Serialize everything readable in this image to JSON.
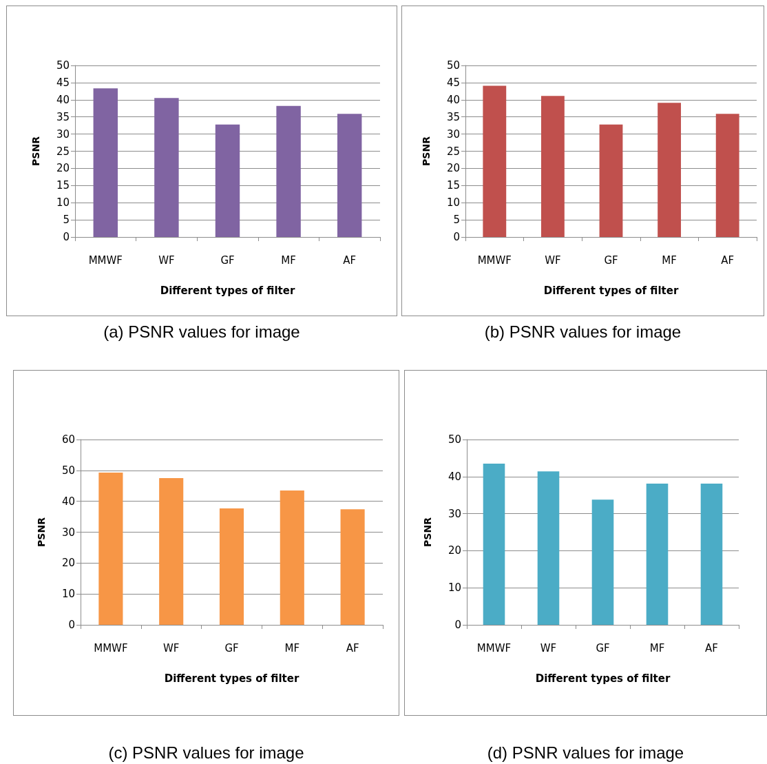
{
  "chart_data": [
    {
      "type": "bar",
      "title": "(a) PSNR values for image",
      "xlabel": "Different types of filter",
      "ylabel": "PSNR",
      "categories": [
        "MMWF",
        "WF",
        "GF",
        "MF",
        "AF"
      ],
      "series": [
        {
          "color": "#8064a2",
          "values": [
            43.3,
            40.5,
            32.8,
            38.2,
            35.9
          ]
        }
      ],
      "ylim": [
        0,
        50
      ],
      "yticks": [
        0,
        5,
        10,
        15,
        20,
        25,
        30,
        35,
        40,
        45,
        50
      ],
      "grid": "y"
    },
    {
      "type": "bar",
      "title": "(b) PSNR values for image",
      "xlabel": "Different types of filter",
      "ylabel": "PSNR",
      "categories": [
        "MMWF",
        "WF",
        "GF",
        "MF",
        "AF"
      ],
      "series": [
        {
          "color": "#c0504d",
          "values": [
            44.1,
            41.1,
            32.8,
            39.1,
            35.9
          ]
        }
      ],
      "ylim": [
        0,
        50
      ],
      "yticks": [
        0,
        5,
        10,
        15,
        20,
        25,
        30,
        35,
        40,
        45,
        50
      ],
      "grid": "y"
    },
    {
      "type": "bar",
      "title": "(c) PSNR values for image",
      "xlabel": "Different types of filter",
      "ylabel": "PSNR",
      "categories": [
        "MMWF",
        "WF",
        "GF",
        "MF",
        "AF"
      ],
      "series": [
        {
          "color": "#f79646",
          "values": [
            49.3,
            47.5,
            37.7,
            43.5,
            37.4
          ]
        }
      ],
      "ylim": [
        0,
        60
      ],
      "yticks": [
        0,
        10,
        20,
        30,
        40,
        50,
        60
      ],
      "grid": "y"
    },
    {
      "type": "bar",
      "title": "(d) PSNR values for image",
      "xlabel": "Different types of filter",
      "ylabel": "PSNR",
      "categories": [
        "MMWF",
        "WF",
        "GF",
        "MF",
        "AF"
      ],
      "series": [
        {
          "color": "#4bacc6",
          "values": [
            43.5,
            41.4,
            33.8,
            38.1,
            38.1
          ]
        }
      ],
      "ylim": [
        0,
        50
      ],
      "yticks": [
        0,
        10,
        20,
        30,
        40,
        50
      ],
      "grid": "y"
    }
  ]
}
